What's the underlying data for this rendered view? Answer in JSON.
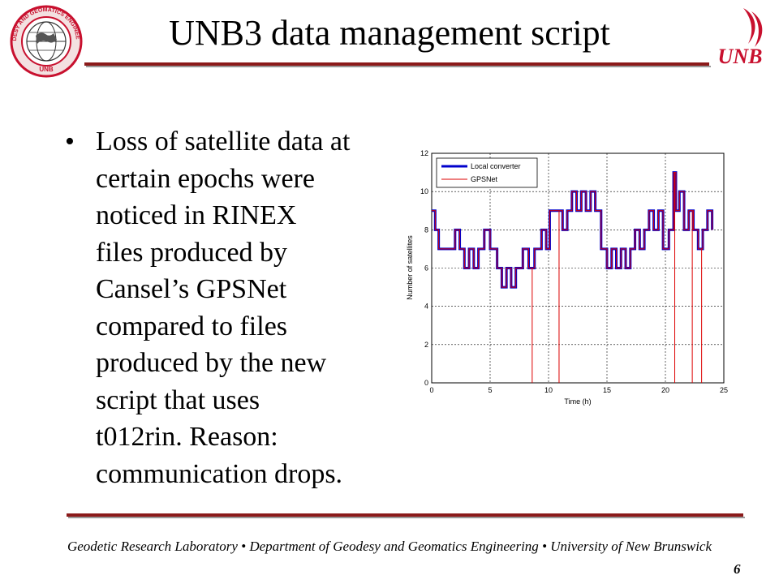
{
  "slide": {
    "title": "UNB3 data management script",
    "bullet_text": "Loss of satellite data at\ncertain epochs were\nnoticed in RINEX\nfiles produced by\nCansel’s GPSNet\ncompared to files\nproduced by the new\nscript that uses\nt012rin. Reason:\ncommunication drops.",
    "footer": "Geodetic Research Laboratory • Department of Geodesy and Geomatics Engineering • University of New Brunswick",
    "page_number": "6"
  },
  "logos": {
    "left_seal_text": "GEODESY AND GEOMATICS ENGINEERING",
    "left_seal_bottom": "UNB",
    "right_logo_text": "UNB"
  },
  "colors": {
    "accent_rule": "#8b1a1a",
    "local_converter": "#0000cc",
    "gpsnet": "#dd0000",
    "logo_red": "#c8102e"
  },
  "chart_data": {
    "type": "line",
    "xlabel": "Time (h)",
    "ylabel": "Number of satellites",
    "xlim": [
      0,
      25
    ],
    "ylim": [
      0,
      12
    ],
    "xticks": [
      0,
      5,
      10,
      15,
      20,
      25
    ],
    "yticks": [
      0,
      2,
      4,
      6,
      8,
      10,
      12
    ],
    "grid": true,
    "legend_position": "top-left",
    "series": [
      {
        "name": "Local converter",
        "step_times": [
          0,
          0.3,
          0.6,
          2,
          2.4,
          2.8,
          3.2,
          3.6,
          4,
          4.5,
          5,
          5.6,
          6,
          6.4,
          6.8,
          7.2,
          7.8,
          8.3,
          8.8,
          9.4,
          9.8,
          10.1,
          11.2,
          11.6,
          12,
          12.4,
          12.8,
          13.2,
          13.6,
          14,
          14.5,
          15,
          15.4,
          15.8,
          16.2,
          16.6,
          17,
          17.4,
          17.8,
          18.2,
          18.6,
          19,
          19.4,
          19.8,
          20.3,
          20.7,
          20.9,
          21.2,
          21.6,
          22,
          22.4,
          22.8,
          23.2,
          23.6,
          24
        ],
        "values": [
          9,
          8,
          7,
          8,
          7,
          6,
          7,
          6,
          7,
          8,
          7,
          6,
          5,
          6,
          5,
          6,
          7,
          6,
          7,
          8,
          7,
          9,
          8,
          9,
          10,
          9,
          10,
          9,
          10,
          9,
          7,
          6,
          7,
          6,
          7,
          6,
          7,
          8,
          7,
          8,
          9,
          8,
          9,
          7,
          8,
          11,
          9,
          10,
          8,
          9,
          8,
          7,
          8,
          9,
          8
        ]
      },
      {
        "name": "GPSNet",
        "step_times": [
          0,
          0.3,
          0.6,
          2,
          2.4,
          2.8,
          3.2,
          3.6,
          4,
          4.5,
          5,
          5.6,
          6,
          6.4,
          6.8,
          7.2,
          7.8,
          8.3,
          8.8,
          9.4,
          9.8,
          10.1,
          11.2,
          11.6,
          12,
          12.4,
          12.8,
          13.2,
          13.6,
          14,
          14.5,
          15,
          15.4,
          15.8,
          16.2,
          16.6,
          17,
          17.4,
          17.8,
          18.2,
          18.6,
          19,
          19.4,
          19.8,
          20.3,
          20.7,
          20.9,
          21.2,
          21.6,
          22,
          22.4,
          22.8,
          23.2,
          23.6,
          24
        ],
        "values": [
          9,
          8,
          7,
          8,
          7,
          6,
          7,
          6,
          7,
          8,
          7,
          6,
          5,
          6,
          5,
          6,
          7,
          6,
          7,
          8,
          7,
          9,
          8,
          9,
          10,
          9,
          10,
          9,
          10,
          9,
          7,
          6,
          7,
          6,
          7,
          6,
          7,
          8,
          7,
          8,
          9,
          8,
          9,
          7,
          8,
          11,
          9,
          10,
          8,
          9,
          8,
          7,
          8,
          9,
          8
        ],
        "drops_to_zero": [
          8.6,
          10.9,
          20.8,
          22.3,
          23.1
        ]
      }
    ]
  }
}
